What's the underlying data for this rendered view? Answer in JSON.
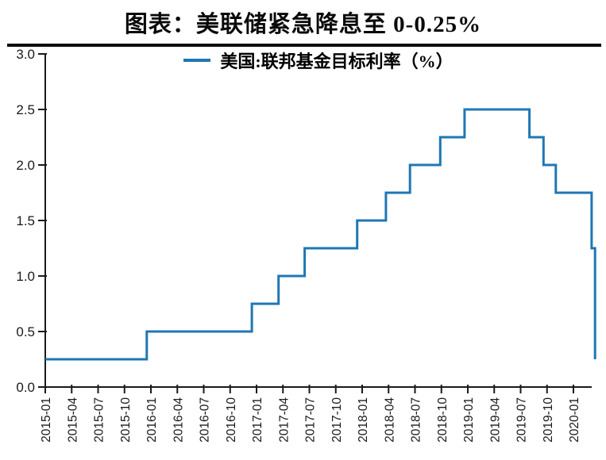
{
  "chart_data": {
    "type": "line",
    "line_style": "step-after",
    "title": "图表：美联储紧急降息至 0-0.25%",
    "legend": {
      "label": "美国:联邦基金目标利率（%）",
      "position": "top-center",
      "swatch_color": "#1F77B4"
    },
    "xlabel": "",
    "ylabel": "",
    "grid": false,
    "ylim": [
      0.0,
      3.0
    ],
    "y_ticks": [
      "0.0",
      "0.5",
      "1.0",
      "1.5",
      "2.0",
      "2.5",
      "3.0"
    ],
    "x_ticks": [
      "2015-01",
      "2015-04",
      "2015-07",
      "2015-10",
      "2016-01",
      "2016-04",
      "2016-07",
      "2016-10",
      "2017-01",
      "2017-04",
      "2017-07",
      "2017-10",
      "2018-01",
      "2018-04",
      "2018-07",
      "2018-10",
      "2019-01",
      "2019-04",
      "2019-07",
      "2019-10",
      "2020-01"
    ],
    "x_domain": [
      "2015-01",
      "2020-03"
    ],
    "series": [
      {
        "name": "美国:联邦基金目标利率（%）",
        "color": "#1F77B4",
        "line_width": 3,
        "steps": [
          {
            "date": "2015-01",
            "m": 0.0,
            "value": 0.25
          },
          {
            "date": "2015-12",
            "m": 11.53,
            "value": 0.5
          },
          {
            "date": "2016-12",
            "m": 23.47,
            "value": 0.75
          },
          {
            "date": "2017-03",
            "m": 26.5,
            "value": 1.0
          },
          {
            "date": "2017-06",
            "m": 29.47,
            "value": 1.25
          },
          {
            "date": "2017-12",
            "m": 35.43,
            "value": 1.5
          },
          {
            "date": "2018-03",
            "m": 38.7,
            "value": 1.75
          },
          {
            "date": "2018-06",
            "m": 41.43,
            "value": 2.0
          },
          {
            "date": "2018-09",
            "m": 44.87,
            "value": 2.25
          },
          {
            "date": "2018-12",
            "m": 47.63,
            "value": 2.5
          },
          {
            "date": "2019-08",
            "m": 55.0,
            "value": 2.25
          },
          {
            "date": "2019-09",
            "m": 56.6,
            "value": 2.0
          },
          {
            "date": "2019-10",
            "m": 58.0,
            "value": 1.75
          },
          {
            "date": "2020-03",
            "m": 62.07,
            "value": 1.25
          },
          {
            "date": "2020-03",
            "m": 62.45,
            "value": 0.25
          }
        ]
      }
    ]
  }
}
